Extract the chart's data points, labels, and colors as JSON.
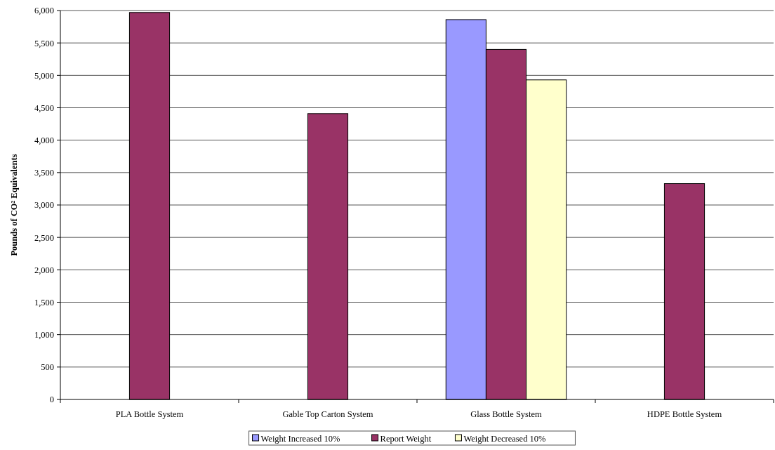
{
  "chart_data": {
    "type": "bar",
    "ylabel": "Pounds of CO² Equivalents",
    "categories": [
      "PLA Bottle System",
      "Gable Top Carton System",
      "Glass Bottle System",
      "HDPE Bottle System"
    ],
    "series": [
      {
        "name": "Weight Increased 10%",
        "color": "#9999ff",
        "values": [
          null,
          null,
          5860,
          null
        ]
      },
      {
        "name": "Report Weight",
        "color": "#993366",
        "values": [
          5970,
          4410,
          5400,
          3330
        ]
      },
      {
        "name": "Weight Decreased 10%",
        "color": "#ffffcc",
        "values": [
          null,
          null,
          4930,
          null
        ]
      }
    ],
    "ylim": [
      0,
      6000
    ],
    "yticks": [
      {
        "value": 0,
        "label": "0"
      },
      {
        "value": 500,
        "label": "500"
      },
      {
        "value": 1000,
        "label": "1,000"
      },
      {
        "value": 1500,
        "label": "1,500"
      },
      {
        "value": 2000,
        "label": "2,000"
      },
      {
        "value": 2500,
        "label": "2,500"
      },
      {
        "value": 3000,
        "label": "3,000"
      },
      {
        "value": 3500,
        "label": "3,500"
      },
      {
        "value": 4000,
        "label": "4,000"
      },
      {
        "value": 4500,
        "label": "4,500"
      },
      {
        "value": 5000,
        "label": "5,000"
      },
      {
        "value": 5500,
        "label": "5,500"
      },
      {
        "value": 6000,
        "label": "6,000"
      }
    ],
    "grid": "y",
    "legend": "bottom"
  }
}
